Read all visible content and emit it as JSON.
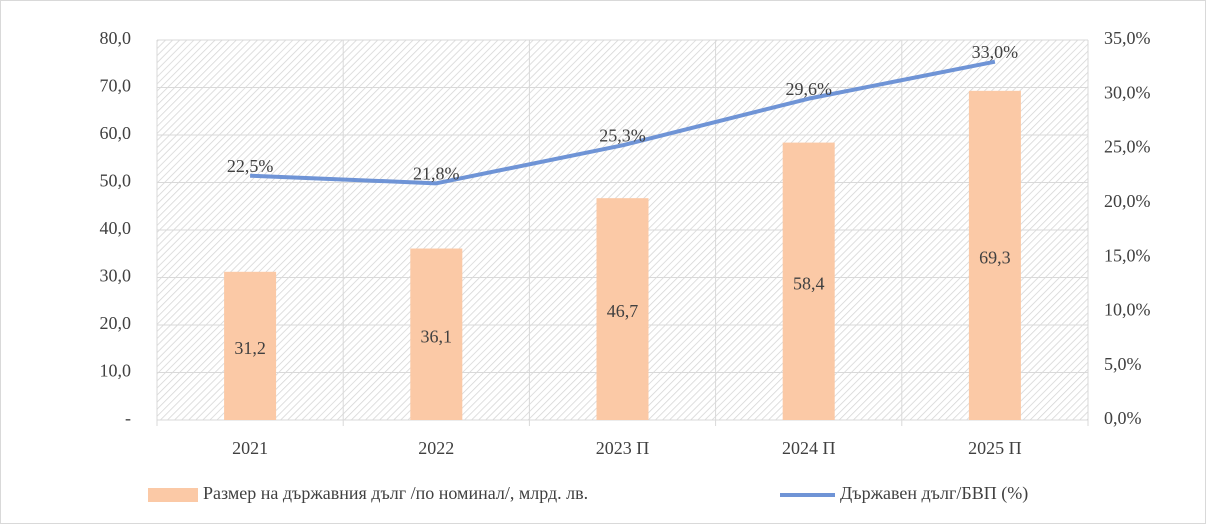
{
  "chart_data": {
    "type": "bar",
    "categories": [
      "2021",
      "2022",
      "2023 П",
      "2024 П",
      "2025 П"
    ],
    "series": [
      {
        "name": "Размер на държавния дълг /по номинал/, млрд. лв.",
        "type": "bar",
        "color": "#fbc9a6",
        "values": [
          31.2,
          36.1,
          46.7,
          58.4,
          69.3
        ],
        "value_labels": [
          "31,2",
          "36,1",
          "46,7",
          "58,4",
          "69,3"
        ]
      },
      {
        "name": "Държавен дълг/БВП (%)",
        "type": "line",
        "axis": "y2",
        "color": "#6f94d6",
        "values": [
          22.5,
          21.8,
          25.3,
          29.6,
          33.0
        ],
        "value_labels": [
          "22,5%",
          "21,8%",
          "25,3%",
          "29,6%",
          "33,0%"
        ]
      }
    ],
    "ylim": [
      0,
      80
    ],
    "yticks": [
      {
        "value": 0,
        "label": "-"
      },
      {
        "value": 10,
        "label": "10,0"
      },
      {
        "value": 20,
        "label": "20,0"
      },
      {
        "value": 30,
        "label": "30,0"
      },
      {
        "value": 40,
        "label": "40,0"
      },
      {
        "value": 50,
        "label": "50,0"
      },
      {
        "value": 60,
        "label": "60,0"
      },
      {
        "value": 70,
        "label": "70,0"
      },
      {
        "value": 80,
        "label": "80,0"
      }
    ],
    "y2lim": [
      0,
      35
    ],
    "y2ticks": [
      {
        "value": 0,
        "label": "0,0%"
      },
      {
        "value": 5,
        "label": "5,0%"
      },
      {
        "value": 10,
        "label": "10,0%"
      },
      {
        "value": 15,
        "label": "15,0%"
      },
      {
        "value": 20,
        "label": "20,0%"
      },
      {
        "value": 25,
        "label": "25,0%"
      },
      {
        "value": 30,
        "label": "30,0%"
      },
      {
        "value": 35,
        "label": "35,0%"
      }
    ],
    "grid": true,
    "legend": "bottom"
  }
}
